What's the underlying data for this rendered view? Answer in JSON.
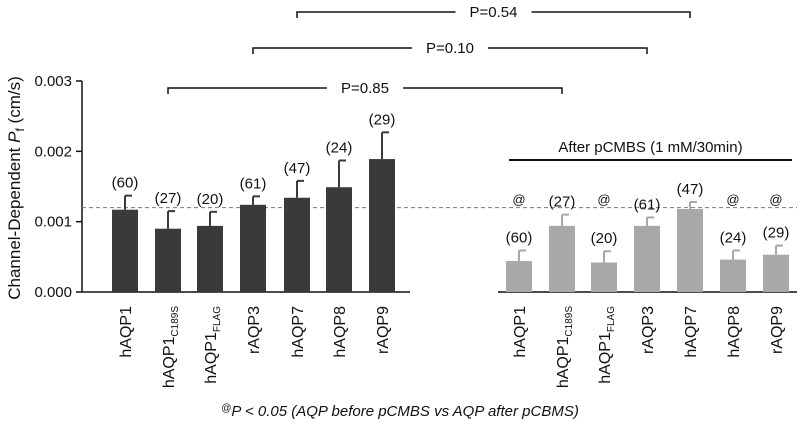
{
  "chart_data": {
    "type": "bar",
    "ylabel": "Channel-Dependent ",
    "ylabel_symbol": "P",
    "ylabel_sub": "f",
    "ylabel_unit": " (cm/s)",
    "ylim": [
      0,
      0.003
    ],
    "yticks": [
      "0.000",
      "0.001",
      "0.002",
      "0.003"
    ],
    "ytick_values": [
      0,
      0.001,
      0.002,
      0.003
    ],
    "reference_line": 0.0012,
    "colors": {
      "before": "#3a3a3a",
      "after": "#a8a8a8"
    },
    "groups": [
      {
        "name": "before",
        "bars": [
          {
            "label": "hAQP1",
            "sub": "",
            "value": 0.00117,
            "error": 0.0002,
            "n": "(60)"
          },
          {
            "label": "hAQP1",
            "sub": "C189S",
            "value": 0.0009,
            "error": 0.00025,
            "n": "(27)"
          },
          {
            "label": "hAQP1",
            "sub": "FLAG",
            "value": 0.00094,
            "error": 0.0002,
            "n": "(20)"
          },
          {
            "label": "rAQP3",
            "sub": "",
            "value": 0.00124,
            "error": 0.00012,
            "n": "(61)"
          },
          {
            "label": "hAQP7",
            "sub": "",
            "value": 0.00134,
            "error": 0.00024,
            "n": "(47)"
          },
          {
            "label": "hAQP8",
            "sub": "",
            "value": 0.00149,
            "error": 0.00038,
            "n": "(24)"
          },
          {
            "label": "rAQP9",
            "sub": "",
            "value": 0.00189,
            "error": 0.00038,
            "n": "(29)"
          }
        ]
      },
      {
        "name": "after",
        "title": "After pCMBS (1 mM/30min)",
        "bars": [
          {
            "label": "hAQP1",
            "sub": "",
            "value": 0.00044,
            "error": 0.00015,
            "n": "(60)",
            "mark": "@"
          },
          {
            "label": "hAQP1",
            "sub": "C189S",
            "value": 0.00094,
            "error": 0.00016,
            "n": "(27)",
            "mark": ""
          },
          {
            "label": "hAQP1",
            "sub": "FLAG",
            "value": 0.00042,
            "error": 0.00016,
            "n": "(20)",
            "mark": "@"
          },
          {
            "label": "rAQP3",
            "sub": "",
            "value": 0.00094,
            "error": 0.00012,
            "n": "(61)",
            "mark": ""
          },
          {
            "label": "hAQP7",
            "sub": "",
            "value": 0.00118,
            "error": 0.0001,
            "n": "(47)",
            "mark": ""
          },
          {
            "label": "hAQP8",
            "sub": "",
            "value": 0.00046,
            "error": 0.00013,
            "n": "(24)",
            "mark": "@"
          },
          {
            "label": "rAQP9",
            "sub": "",
            "value": 0.00053,
            "error": 0.00013,
            "n": "(29)",
            "mark": "@"
          }
        ]
      }
    ],
    "comparisons": [
      {
        "label": "P=0.54",
        "from": "before.4",
        "to": "after.4"
      },
      {
        "label": "P=0.10",
        "from": "before.3",
        "to": "after.3"
      },
      {
        "label": "P=0.85",
        "from": "before.1",
        "to": "after.1"
      }
    ],
    "footnote": {
      "mark": "@",
      "text": "P < 0.05 (AQP before pCMBS vs AQP after pCBMS)"
    }
  }
}
